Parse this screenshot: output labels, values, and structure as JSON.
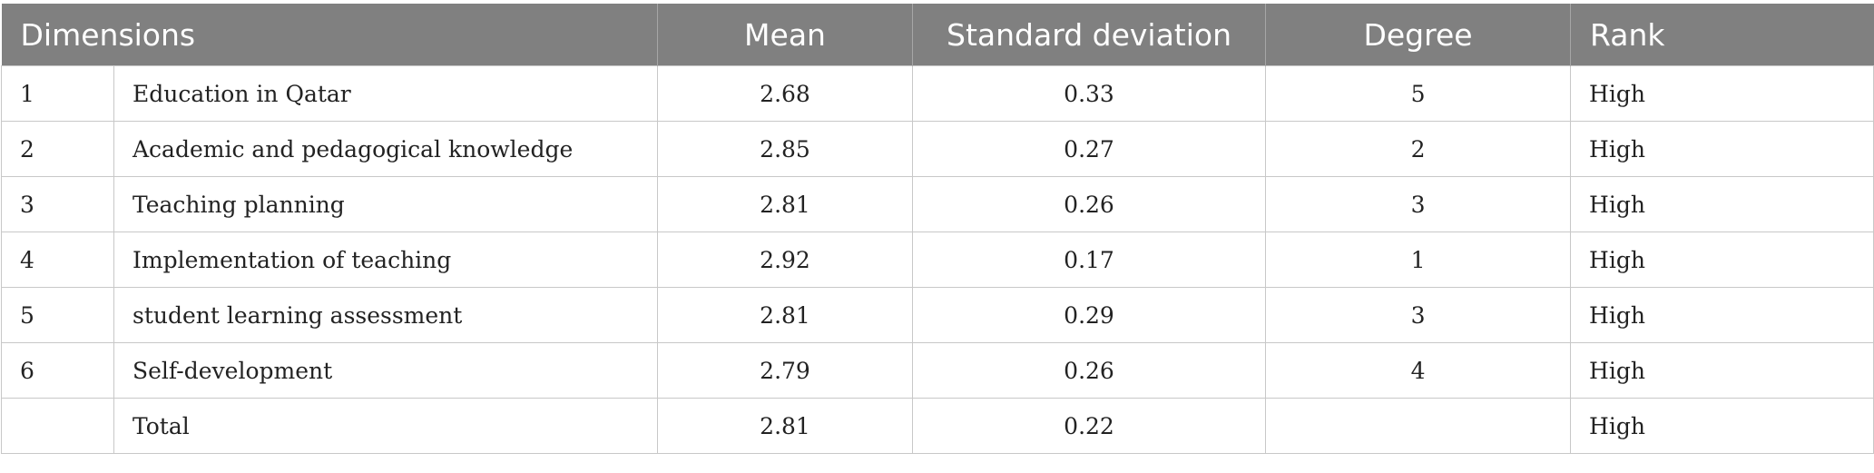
{
  "table": {
    "headers": {
      "dimensions": "Dimensions",
      "mean": "Mean",
      "sd": "Standard deviation",
      "degree": "Degree",
      "rank": "Rank"
    },
    "rows": [
      {
        "num": "1",
        "dimension": "Education in Qatar",
        "mean": "2.68",
        "sd": "0.33",
        "degree": "5",
        "rank": "High"
      },
      {
        "num": "2",
        "dimension": "Academic and pedagogical knowledge",
        "mean": "2.85",
        "sd": "0.27",
        "degree": "2",
        "rank": "High"
      },
      {
        "num": "3",
        "dimension": "Teaching planning",
        "mean": "2.81",
        "sd": "0.26",
        "degree": "3",
        "rank": "High"
      },
      {
        "num": "4",
        "dimension": "Implementation of teaching",
        "mean": "2.92",
        "sd": "0.17",
        "degree": "1",
        "rank": "High"
      },
      {
        "num": "5",
        "dimension": "student learning assessment",
        "mean": "2.81",
        "sd": "0.29",
        "degree": "3",
        "rank": "High"
      },
      {
        "num": "6",
        "dimension": "Self-development",
        "mean": "2.79",
        "sd": "0.26",
        "degree": "4",
        "rank": "High"
      },
      {
        "num": "",
        "dimension": "Total",
        "mean": "2.81",
        "sd": "0.22",
        "degree": "",
        "rank": "High"
      }
    ]
  }
}
